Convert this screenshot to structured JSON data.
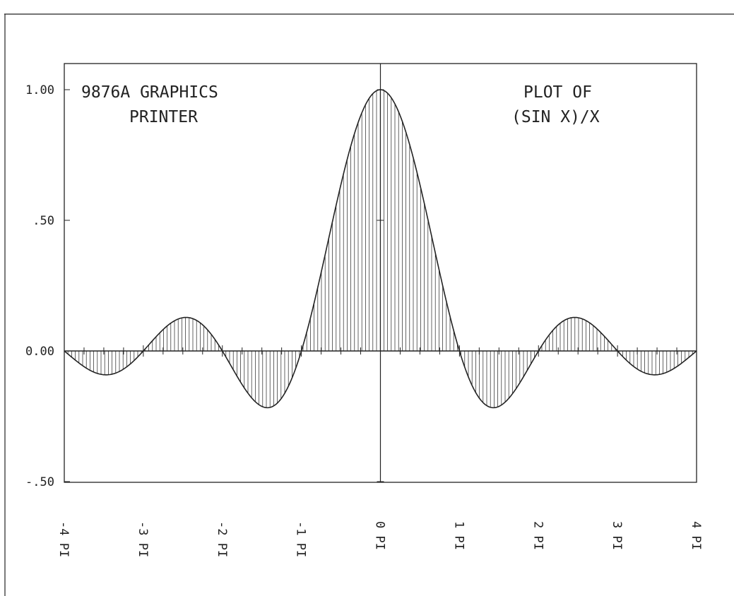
{
  "chart_data": {
    "type": "area",
    "function": "(SIN X)/X",
    "annotations": {
      "left_line1": "9876A GRAPHICS",
      "left_line2": "PRINTER",
      "right_line1": "PLOT OF",
      "right_line2": "(SIN X)/X"
    },
    "xlim": [
      -4,
      4
    ],
    "x_unit": "PI",
    "x_ticks": [
      {
        "value": -4,
        "label": "-4 PI"
      },
      {
        "value": -3,
        "label": "-3 PI"
      },
      {
        "value": -2,
        "label": "-2 PI"
      },
      {
        "value": -1,
        "label": "-1 PI"
      },
      {
        "value": 0,
        "label": "0 PI"
      },
      {
        "value": 1,
        "label": "1 PI"
      },
      {
        "value": 2,
        "label": "2 PI"
      },
      {
        "value": 3,
        "label": "3 PI"
      },
      {
        "value": 4,
        "label": "4 PI"
      }
    ],
    "ylim": [
      -0.5,
      1.05
    ],
    "y_ticks": [
      {
        "value": 1.0,
        "label": "1.00"
      },
      {
        "value": 0.5,
        "label": ".50"
      },
      {
        "value": 0.0,
        "label": "0.00"
      },
      {
        "value": -0.5,
        "label": "-.50"
      }
    ],
    "series": [
      {
        "x": [
          -4,
          -3.75,
          -3.5,
          -3.25,
          -3,
          -2.75,
          -2.5,
          -2.25,
          -2,
          -1.75,
          -1.5,
          -1.25,
          -1,
          -0.75,
          -0.5,
          -0.25,
          0,
          0.25,
          0.5,
          0.75,
          1,
          1.25,
          1.5,
          1.75,
          2,
          2.25,
          2.5,
          2.75,
          3,
          3.25,
          3.5,
          3.75,
          4
        ],
        "y": [
          0,
          -0.06,
          -0.091,
          -0.069,
          0,
          0.082,
          0.127,
          0.1,
          0,
          -0.129,
          -0.212,
          -0.18,
          0,
          0.3,
          0.637,
          0.9,
          1.0,
          0.9,
          0.637,
          0.3,
          0,
          -0.18,
          -0.212,
          -0.129,
          0,
          0.1,
          0.127,
          0.082,
          0,
          -0.069,
          -0.091,
          -0.06,
          0
        ]
      }
    ],
    "fill": "vertical-hatch",
    "grid": false,
    "colors": {
      "ink": "#222222",
      "background": "#ffffff"
    }
  }
}
